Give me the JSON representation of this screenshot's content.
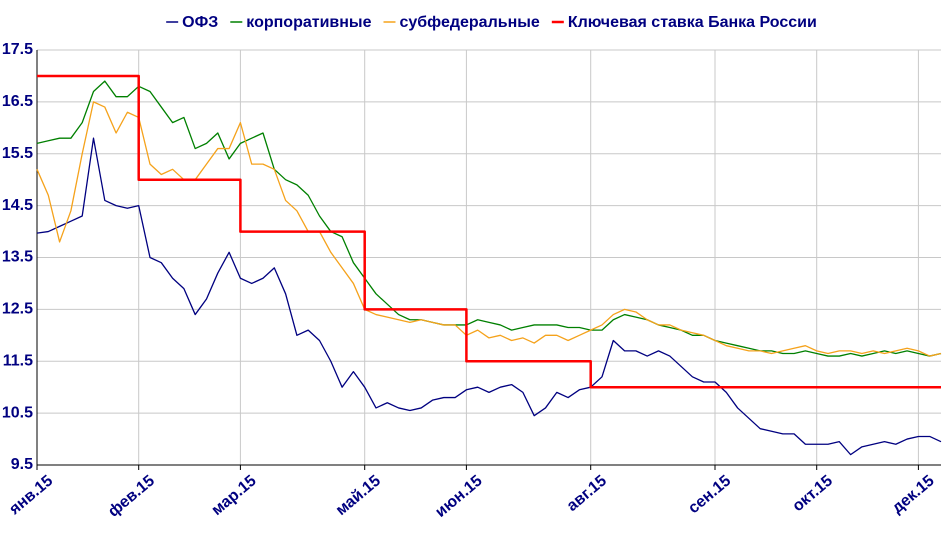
{
  "chart_data": {
    "type": "line",
    "categories": [
      "янв.15",
      null,
      null,
      null,
      null,
      null,
      null,
      null,
      null,
      "фев.15",
      null,
      null,
      null,
      null,
      null,
      null,
      null,
      null,
      "мар.15",
      null,
      null,
      null,
      null,
      null,
      null,
      null,
      null,
      null,
      null,
      "май.15",
      null,
      null,
      null,
      null,
      null,
      null,
      null,
      null,
      "июн.15",
      null,
      null,
      null,
      null,
      null,
      null,
      null,
      null,
      null,
      null,
      "авг.15",
      null,
      null,
      null,
      null,
      null,
      null,
      null,
      null,
      null,
      null,
      "сен.15",
      null,
      null,
      null,
      null,
      null,
      null,
      null,
      null,
      "окт.15",
      null,
      null,
      null,
      null,
      null,
      null,
      null,
      null,
      "дек.15",
      null,
      null
    ],
    "series": [
      {
        "name": "ОФЗ",
        "color": "#000080",
        "values": [
          13.97,
          14.0,
          14.1,
          14.2,
          14.3,
          15.8,
          14.6,
          14.5,
          14.45,
          14.5,
          13.5,
          13.4,
          13.1,
          12.9,
          12.4,
          12.7,
          13.2,
          13.6,
          13.1,
          13.0,
          13.1,
          13.3,
          12.8,
          12.0,
          12.1,
          11.9,
          11.5,
          11.0,
          11.3,
          11.0,
          10.6,
          10.7,
          10.6,
          10.55,
          10.6,
          10.75,
          10.8,
          10.8,
          10.95,
          11.0,
          10.9,
          11.0,
          11.05,
          10.9,
          10.45,
          10.6,
          10.9,
          10.8,
          10.95,
          11.0,
          11.2,
          11.9,
          11.7,
          11.7,
          11.6,
          11.7,
          11.6,
          11.4,
          11.2,
          11.1,
          11.1,
          10.9,
          10.6,
          10.4,
          10.2,
          10.15,
          10.1,
          10.1,
          9.9,
          9.9,
          9.9,
          9.95,
          9.7,
          9.85,
          9.9,
          9.95,
          9.9,
          10.0,
          10.05,
          10.05,
          9.95
        ]
      },
      {
        "name": "корпоративные",
        "color": "#008000",
        "values": [
          15.7,
          15.75,
          15.8,
          15.8,
          16.1,
          16.7,
          16.9,
          16.6,
          16.6,
          16.8,
          16.7,
          16.4,
          16.1,
          16.2,
          15.6,
          15.7,
          15.9,
          15.4,
          15.7,
          15.8,
          15.9,
          15.2,
          15.0,
          14.9,
          14.7,
          14.3,
          14.0,
          13.9,
          13.4,
          13.1,
          12.8,
          12.6,
          12.4,
          12.3,
          12.3,
          12.25,
          12.2,
          12.2,
          12.2,
          12.3,
          12.25,
          12.2,
          12.1,
          12.15,
          12.2,
          12.2,
          12.2,
          12.15,
          12.15,
          12.1,
          12.1,
          12.3,
          12.4,
          12.35,
          12.3,
          12.2,
          12.15,
          12.1,
          12.0,
          12.0,
          11.9,
          11.85,
          11.8,
          11.75,
          11.7,
          11.7,
          11.65,
          11.65,
          11.7,
          11.65,
          11.6,
          11.6,
          11.65,
          11.6,
          11.65,
          11.7,
          11.65,
          11.7,
          11.65,
          11.6,
          11.65
        ]
      },
      {
        "name": "субфедеральные",
        "color": "#f5a21b",
        "values": [
          15.2,
          14.7,
          13.8,
          14.4,
          15.5,
          16.5,
          16.4,
          15.9,
          16.3,
          16.2,
          15.3,
          15.1,
          15.2,
          15.0,
          15.0,
          15.3,
          15.6,
          15.6,
          16.1,
          15.3,
          15.3,
          15.2,
          14.6,
          14.4,
          14.0,
          14.0,
          13.6,
          13.3,
          13.0,
          12.5,
          12.4,
          12.35,
          12.3,
          12.25,
          12.3,
          12.25,
          12.2,
          12.2,
          12.0,
          12.1,
          11.95,
          12.0,
          11.9,
          11.95,
          11.85,
          12.0,
          12.0,
          11.9,
          12.0,
          12.1,
          12.2,
          12.4,
          12.5,
          12.45,
          12.3,
          12.2,
          12.2,
          12.1,
          12.05,
          12.0,
          11.9,
          11.8,
          11.75,
          11.7,
          11.7,
          11.65,
          11.7,
          11.75,
          11.8,
          11.7,
          11.65,
          11.7,
          11.7,
          11.65,
          11.7,
          11.65,
          11.7,
          11.75,
          11.7,
          11.6,
          11.65
        ]
      },
      {
        "name": "Ключевая ставка Банка России",
        "color": "#ff0000",
        "step": true,
        "values": [
          17,
          17,
          17,
          17,
          17,
          17,
          17,
          17,
          17,
          15,
          15,
          15,
          15,
          15,
          15,
          15,
          15,
          15,
          14,
          14,
          14,
          14,
          14,
          14,
          14,
          14,
          14,
          14,
          14,
          12.5,
          12.5,
          12.5,
          12.5,
          12.5,
          12.5,
          12.5,
          12.5,
          12.5,
          11.5,
          11.5,
          11.5,
          11.5,
          11.5,
          11.5,
          11.5,
          11.5,
          11.5,
          11.5,
          11.5,
          11,
          11,
          11,
          11,
          11,
          11,
          11,
          11,
          11,
          11,
          11,
          11,
          11,
          11,
          11,
          11,
          11,
          11,
          11,
          11,
          11,
          11,
          11,
          11,
          11,
          11,
          11,
          11,
          11,
          11,
          11,
          11
        ]
      }
    ],
    "ylim": [
      9.5,
      17.5
    ],
    "yticks": [
      9.5,
      10.5,
      11.5,
      12.5,
      13.5,
      14.5,
      15.5,
      16.5,
      17.5
    ],
    "grid": true,
    "legend": "top"
  }
}
